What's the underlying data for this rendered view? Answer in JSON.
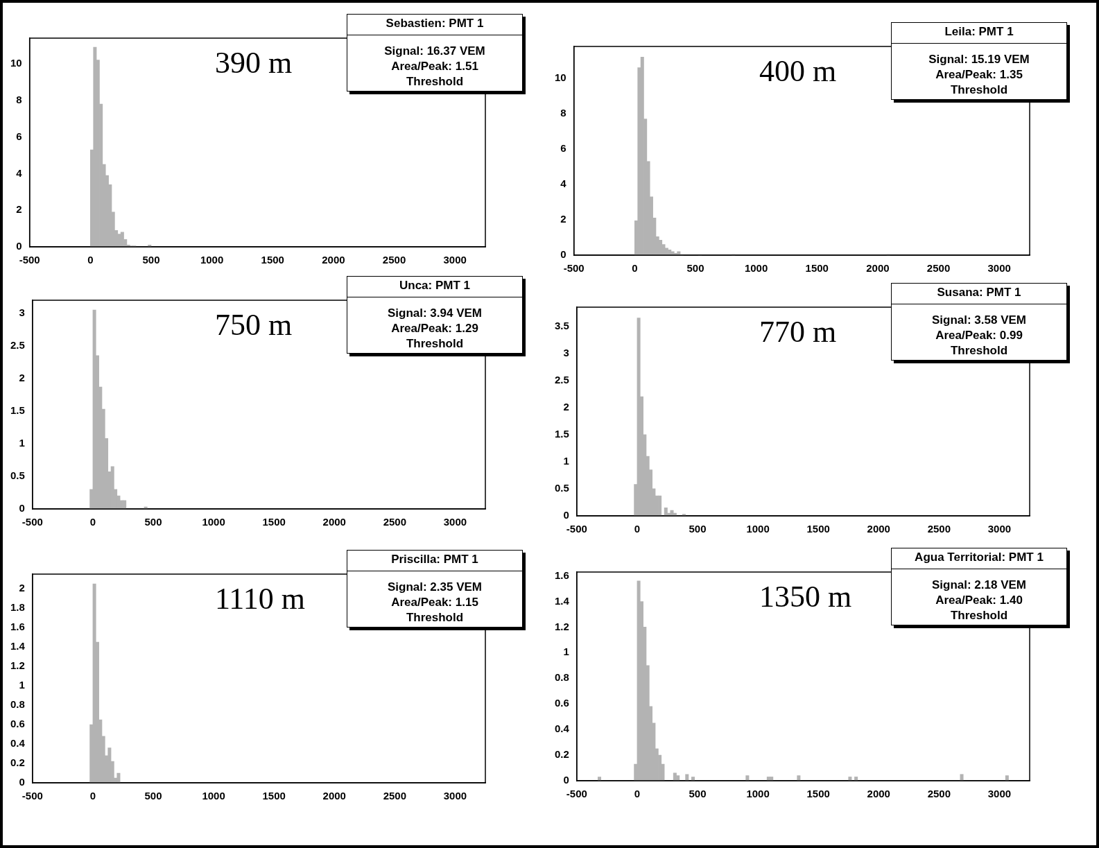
{
  "chart_data": [
    {
      "type": "histogram",
      "title": "Sebastien: PMT 1",
      "annotations": [
        "390 m",
        "Signal: 16.37 VEM",
        "Area/Peak: 1.51",
        "Threshold"
      ],
      "bins": [
        0,
        25,
        50,
        75,
        100,
        125,
        150,
        175,
        200,
        225,
        250,
        275,
        300,
        325,
        350,
        375,
        475,
        500
      ],
      "values": [
        5.3,
        10.9,
        10.2,
        7.8,
        4.5,
        3.9,
        3.4,
        1.9,
        0.9,
        0.7,
        0.8,
        0.4,
        0.1,
        0.05,
        0.05,
        0,
        0.1
      ],
      "color": "#b3b3b3",
      "xlim": [
        -500,
        3250
      ],
      "xticks": [
        -500,
        0,
        500,
        1000,
        1500,
        2000,
        2500,
        3000
      ],
      "ylim": [
        0,
        11.4
      ],
      "yticks": [
        0,
        2,
        4,
        6,
        8,
        10
      ],
      "grid": false,
      "legend": false
    },
    {
      "type": "histogram",
      "title": "Leila: PMT 1",
      "annotations": [
        "400 m",
        "Signal: 15.19 VEM",
        "Area/Peak: 1.35",
        "Threshold"
      ],
      "bins": [
        0,
        25,
        50,
        75,
        100,
        125,
        150,
        175,
        200,
        225,
        250,
        275,
        300,
        325,
        350,
        375,
        400,
        525,
        550,
        800,
        825,
        2075,
        2100
      ],
      "values": [
        1.95,
        10.6,
        11.2,
        7.7,
        5.3,
        3.3,
        2.1,
        1.05,
        0.85,
        0.6,
        0.4,
        0.3,
        0.2,
        0.1,
        0.2,
        0.05,
        0,
        0.05,
        0,
        0.05,
        0,
        0.05
      ],
      "color": "#b3b3b3",
      "xlim": [
        -500,
        3250
      ],
      "xticks": [
        -500,
        0,
        500,
        1000,
        1500,
        2000,
        2500,
        3000
      ],
      "ylim": [
        0,
        11.8
      ],
      "yticks": [
        0,
        2,
        4,
        6,
        8,
        10
      ],
      "grid": false,
      "legend": false
    },
    {
      "type": "histogram",
      "title": "Unca: PMT 1",
      "annotations": [
        "750 m",
        "Signal: 3.94 VEM",
        "Area/Peak: 1.29",
        "Threshold"
      ],
      "bins": [
        -25,
        0,
        25,
        50,
        75,
        100,
        125,
        150,
        175,
        200,
        225,
        250,
        275,
        425,
        450
      ],
      "values": [
        0.3,
        3.05,
        2.35,
        1.87,
        1.53,
        1.08,
        0.57,
        0.65,
        0.3,
        0.2,
        0.13,
        0.13,
        0,
        0.03
      ],
      "color": "#b3b3b3",
      "xlim": [
        -500,
        3250
      ],
      "xticks": [
        -500,
        0,
        500,
        1000,
        1500,
        2000,
        2500,
        3000
      ],
      "ylim": [
        0,
        3.2
      ],
      "yticks": [
        0,
        0.5,
        1,
        1.5,
        2,
        2.5,
        3
      ],
      "grid": false,
      "legend": false
    },
    {
      "type": "histogram",
      "title": "Susana: PMT 1",
      "annotations": [
        "770 m",
        "Signal: 3.58 VEM",
        "Area/Peak: 0.99",
        "Threshold"
      ],
      "bins": [
        -25,
        0,
        25,
        50,
        75,
        100,
        125,
        150,
        175,
        200,
        225,
        250,
        275,
        300,
        325,
        375,
        400
      ],
      "values": [
        0.58,
        3.65,
        2.2,
        1.5,
        1.1,
        0.85,
        0.5,
        0.37,
        0.37,
        0,
        0.15,
        0.05,
        0.1,
        0.05,
        0,
        0.03
      ],
      "color": "#b3b3b3",
      "xlim": [
        -500,
        3250
      ],
      "xticks": [
        -500,
        0,
        500,
        1000,
        1500,
        2000,
        2500,
        3000
      ],
      "ylim": [
        0,
        3.85
      ],
      "yticks": [
        0,
        0.5,
        1,
        1.5,
        2,
        2.5,
        3,
        3.5
      ],
      "grid": false,
      "legend": false
    },
    {
      "type": "histogram",
      "title": "Priscilla: PMT 1",
      "annotations": [
        "1110 m",
        "Signal: 2.35 VEM",
        "Area/Peak: 1.15",
        "Threshold"
      ],
      "bins": [
        -25,
        0,
        25,
        50,
        75,
        100,
        125,
        150,
        175,
        200,
        225
      ],
      "values": [
        0.6,
        2.05,
        1.45,
        0.65,
        0.48,
        0.28,
        0.36,
        0.22,
        0.05,
        0.1
      ],
      "color": "#b3b3b3",
      "xlim": [
        -500,
        3250
      ],
      "xticks": [
        -500,
        0,
        500,
        1000,
        1500,
        2000,
        2500,
        3000
      ],
      "ylim": [
        0,
        2.15
      ],
      "yticks": [
        0,
        0.2,
        0.4,
        0.6,
        0.8,
        1,
        1.2,
        1.4,
        1.6,
        1.8,
        2
      ],
      "grid": false,
      "legend": false
    },
    {
      "type": "histogram",
      "title": "Agua Territorial: PMT 1",
      "annotations": [
        "1350 m",
        "Signal: 2.18 VEM",
        "Area/Peak: 1.40",
        "Threshold"
      ],
      "bins": [
        -325,
        -300,
        -25,
        0,
        25,
        50,
        75,
        100,
        125,
        150,
        175,
        200,
        225,
        300,
        325,
        350,
        400,
        425,
        450,
        475,
        900,
        925,
        1075,
        1100,
        1125,
        1325,
        1350,
        1750,
        1775,
        1800,
        1825,
        2675,
        2700,
        3050,
        3075
      ],
      "values": [
        0.03,
        0,
        0.13,
        1.56,
        1.4,
        1.2,
        0.9,
        0.58,
        0.45,
        0.25,
        0.2,
        0.13,
        0,
        0.06,
        0.04,
        0,
        0.05,
        0,
        0.03,
        0,
        0.04,
        0,
        0.03,
        0.03,
        0,
        0.04,
        0,
        0.03,
        0,
        0.03,
        0,
        0.05,
        0,
        0.04
      ],
      "color": "#b3b3b3",
      "xlim": [
        -500,
        3250
      ],
      "xticks": [
        -500,
        0,
        500,
        1000,
        1500,
        2000,
        2500,
        3000
      ],
      "ylim": [
        0,
        1.63
      ],
      "yticks": [
        0,
        0.2,
        0.4,
        0.6,
        0.8,
        1,
        1.2,
        1.4,
        1.6
      ],
      "grid": false,
      "legend": false
    }
  ]
}
